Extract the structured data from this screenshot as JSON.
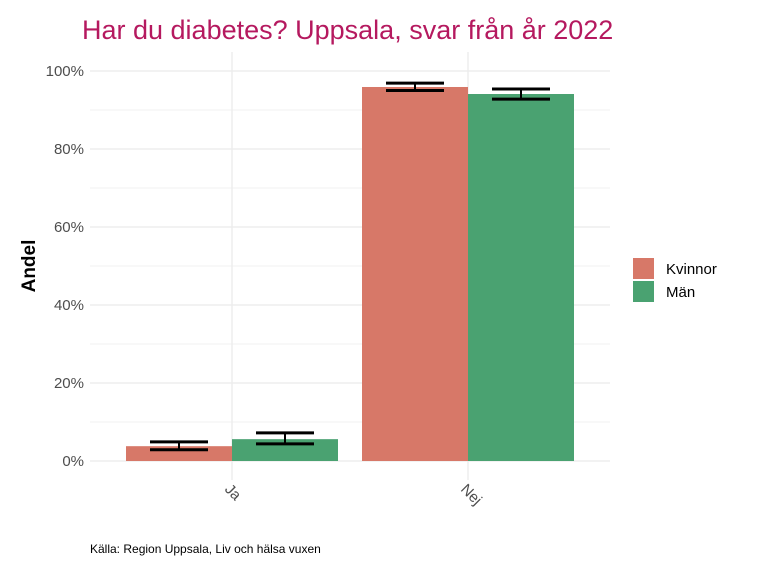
{
  "chart_data": {
    "type": "bar",
    "title": "Har du diabetes? Uppsala, svar från år 2022",
    "xlabel": "",
    "ylabel": "Andel",
    "ylim": [
      0,
      100
    ],
    "yticks": [
      0,
      20,
      40,
      60,
      80,
      100
    ],
    "ytick_labels": [
      "0%",
      "20%",
      "40%",
      "60%",
      "80%",
      "100%"
    ],
    "categories": [
      "Ja",
      "Nej"
    ],
    "series": [
      {
        "name": "Kvinnor",
        "color": "#D77868",
        "values": [
          3.8,
          95.9
        ],
        "ci_low": [
          2.9,
          95.0
        ],
        "ci_high": [
          4.9,
          96.9
        ]
      },
      {
        "name": "Män",
        "color": "#4AA271",
        "values": [
          5.6,
          94.1
        ],
        "ci_low": [
          4.4,
          92.8
        ],
        "ci_high": [
          7.2,
          95.4
        ]
      }
    ],
    "grid": true,
    "legend": "right",
    "caption": "Källa: Region Uppsala, Liv och hälsa vuxen",
    "title_color": "#B5195F"
  }
}
